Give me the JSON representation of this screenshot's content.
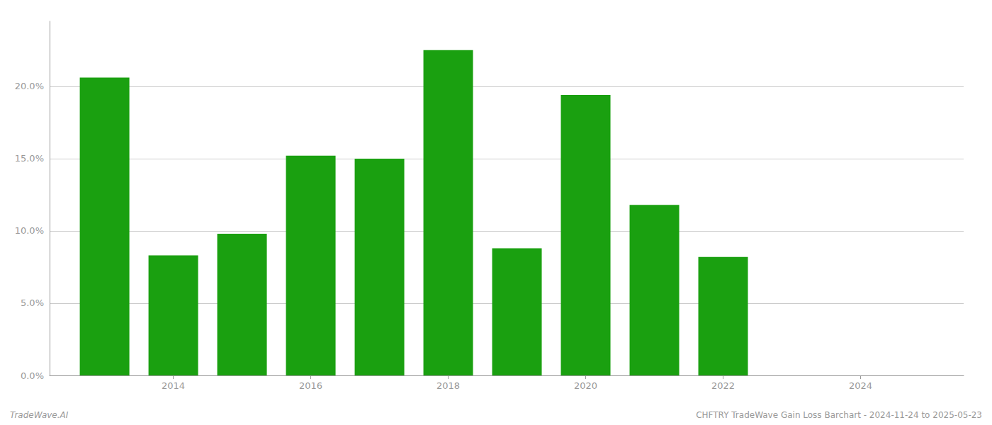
{
  "chart_data": {
    "type": "bar",
    "x": [
      2013,
      2014,
      2015,
      2016,
      2017,
      2018,
      2019,
      2020,
      2021,
      2022
    ],
    "values": [
      0.206,
      0.083,
      0.098,
      0.152,
      0.15,
      0.225,
      0.088,
      0.194,
      0.118,
      0.082
    ],
    "color": "#1aa010",
    "xlim": [
      2012.2,
      2025.5
    ],
    "xticks": [
      2014,
      2016,
      2018,
      2020,
      2022,
      2024
    ],
    "ylim": [
      0.0,
      0.245
    ],
    "yticks": [
      {
        "value": 0.0,
        "label": "0.0%"
      },
      {
        "value": 0.05,
        "label": "5.0%"
      },
      {
        "value": 0.1,
        "label": "10.0%"
      },
      {
        "value": 0.15,
        "label": "15.0%"
      },
      {
        "value": 0.2,
        "label": "20.0%"
      }
    ],
    "grid": true,
    "annotations": [
      "TradeWave.AI",
      "CHFTRY TradeWave Gain Loss Barchart - 2024-11-24 to 2025-05-23"
    ]
  }
}
